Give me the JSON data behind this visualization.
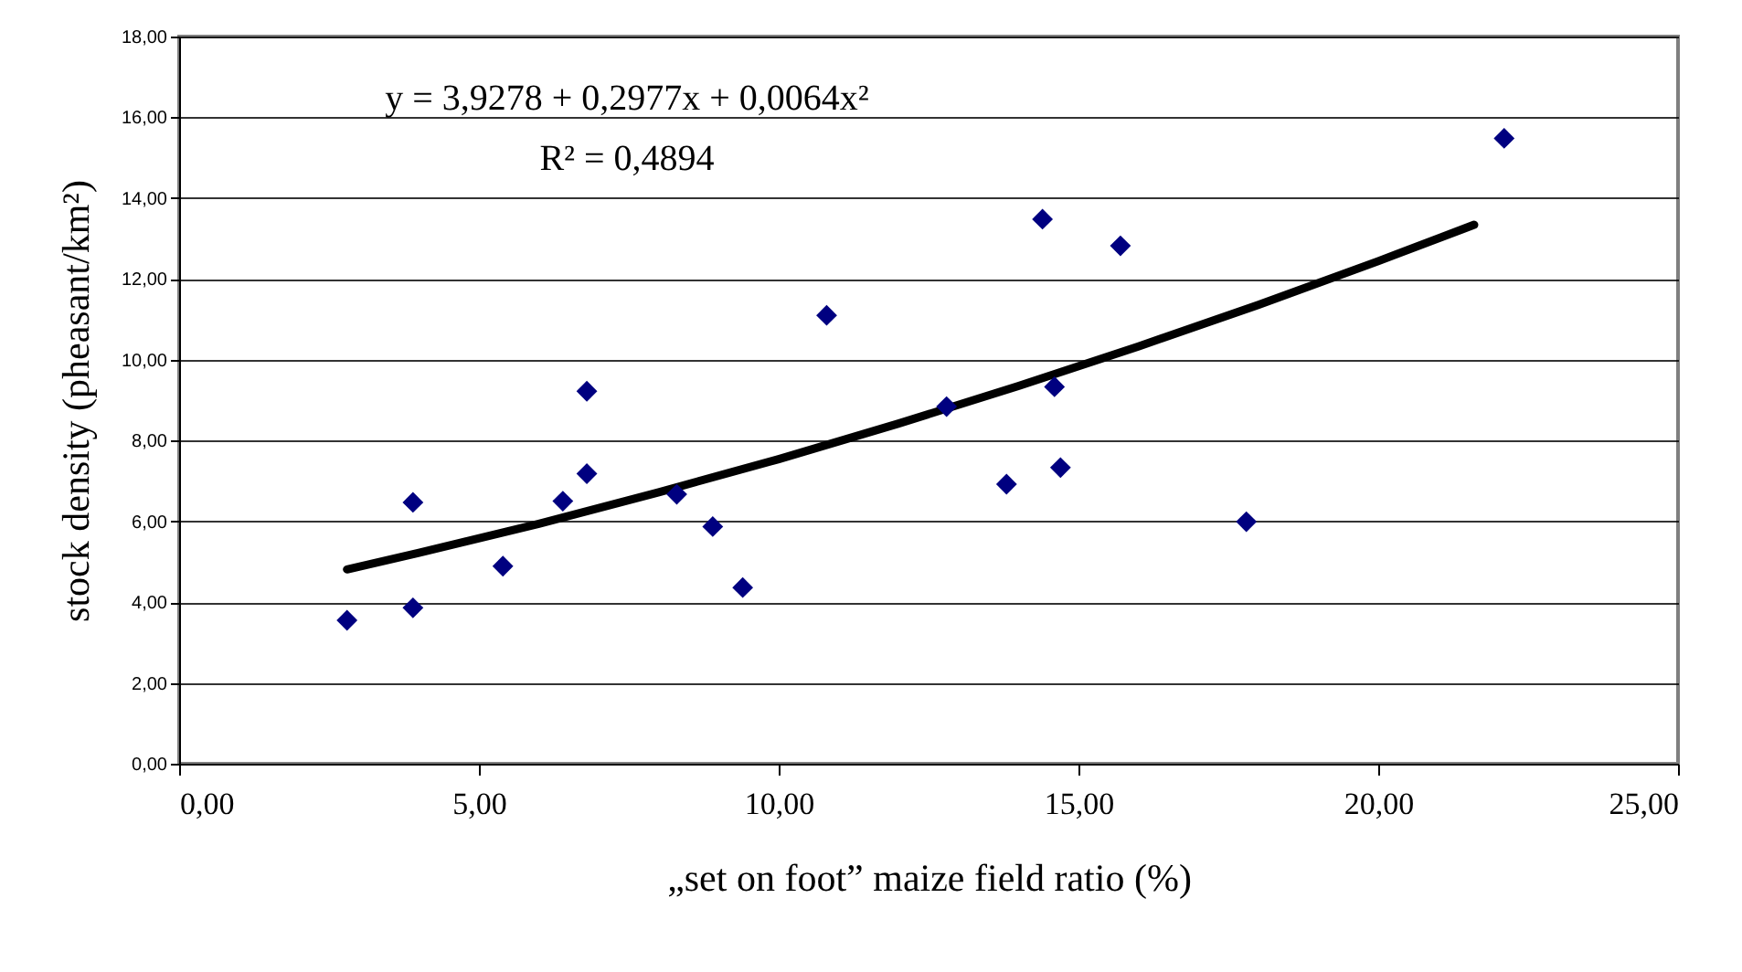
{
  "chart_data": {
    "type": "scatter",
    "xlabel": "„set on foot” maize field ratio (%)",
    "ylabel": "stock density (pheasant/km²)",
    "annotations": [
      "y = 3,9278 + 0,2977x + 0,0064x²",
      "R² = 0,4894"
    ],
    "grid": "y",
    "xlim": [
      0,
      25
    ],
    "ylim": [
      0,
      18
    ],
    "xticks": [
      {
        "value": 0,
        "label": "0,00"
      },
      {
        "value": 5,
        "label": "5,00"
      },
      {
        "value": 10,
        "label": "10,00"
      },
      {
        "value": 15,
        "label": "15,00"
      },
      {
        "value": 20,
        "label": "20,00"
      },
      {
        "value": 25,
        "label": "25,00"
      }
    ],
    "yticks": [
      {
        "value": 0,
        "label": "0,00"
      },
      {
        "value": 2,
        "label": "2,00"
      },
      {
        "value": 4,
        "label": "4,00"
      },
      {
        "value": 6,
        "label": "6,00"
      },
      {
        "value": 8,
        "label": "8,00"
      },
      {
        "value": 10,
        "label": "10,00"
      },
      {
        "value": 12,
        "label": "12,00"
      },
      {
        "value": 14,
        "label": "14,00"
      },
      {
        "value": 16,
        "label": "16,00"
      },
      {
        "value": 18,
        "label": "18,00"
      }
    ],
    "series": [
      {
        "type": "scatter",
        "marker": "diamond",
        "color": "#000080",
        "x": [
          2.8,
          3.9,
          3.9,
          5.4,
          6.4,
          6.8,
          6.8,
          8.3,
          8.9,
          9.4,
          10.8,
          12.8,
          13.8,
          14.4,
          14.6,
          14.7,
          15.7,
          17.8,
          22.1
        ],
        "values": [
          3.55,
          3.86,
          6.47,
          4.89,
          6.5,
          7.18,
          9.22,
          6.67,
          5.87,
          4.36,
          11.1,
          8.84,
          6.92,
          13.48,
          9.33,
          7.33,
          12.82,
          5.99,
          15.48
        ]
      },
      {
        "type": "line",
        "marker": "none",
        "color": "#000000",
        "x": [
          2.8,
          4,
          6,
          8,
          10,
          12,
          14,
          16,
          18,
          20,
          21.6
        ],
        "values": [
          4.81,
          5.22,
          5.94,
          6.72,
          7.54,
          8.42,
          9.35,
          10.33,
          11.36,
          12.44,
          13.34
        ]
      }
    ]
  }
}
